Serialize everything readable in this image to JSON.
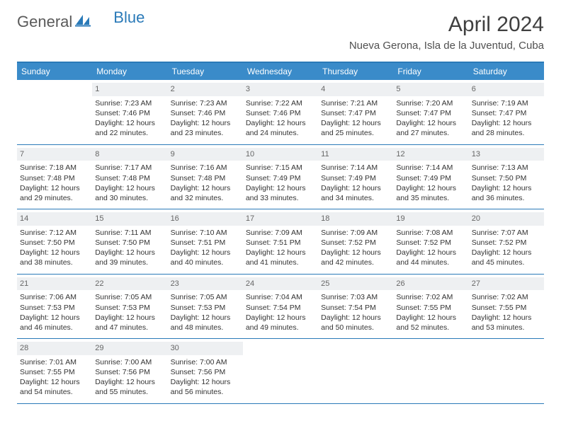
{
  "brand": {
    "part1": "General",
    "part2": "Blue"
  },
  "title": "April 2024",
  "location": "Nueva Gerona, Isla de la Juventud, Cuba",
  "colors": {
    "header_bg": "#3a8bc9",
    "header_text": "#ffffff",
    "border": "#2a7ab8",
    "daynum_bg": "#eef0f2",
    "text": "#333333",
    "brand_blue": "#2a7ab8",
    "brand_gray": "#5a5a5a"
  },
  "day_names": [
    "Sunday",
    "Monday",
    "Tuesday",
    "Wednesday",
    "Thursday",
    "Friday",
    "Saturday"
  ],
  "weeks": [
    [
      null,
      {
        "d": "1",
        "sr": "Sunrise: 7:23 AM",
        "ss": "Sunset: 7:46 PM",
        "dl": "Daylight: 12 hours and 22 minutes."
      },
      {
        "d": "2",
        "sr": "Sunrise: 7:23 AM",
        "ss": "Sunset: 7:46 PM",
        "dl": "Daylight: 12 hours and 23 minutes."
      },
      {
        "d": "3",
        "sr": "Sunrise: 7:22 AM",
        "ss": "Sunset: 7:46 PM",
        "dl": "Daylight: 12 hours and 24 minutes."
      },
      {
        "d": "4",
        "sr": "Sunrise: 7:21 AM",
        "ss": "Sunset: 7:47 PM",
        "dl": "Daylight: 12 hours and 25 minutes."
      },
      {
        "d": "5",
        "sr": "Sunrise: 7:20 AM",
        "ss": "Sunset: 7:47 PM",
        "dl": "Daylight: 12 hours and 27 minutes."
      },
      {
        "d": "6",
        "sr": "Sunrise: 7:19 AM",
        "ss": "Sunset: 7:47 PM",
        "dl": "Daylight: 12 hours and 28 minutes."
      }
    ],
    [
      {
        "d": "7",
        "sr": "Sunrise: 7:18 AM",
        "ss": "Sunset: 7:48 PM",
        "dl": "Daylight: 12 hours and 29 minutes."
      },
      {
        "d": "8",
        "sr": "Sunrise: 7:17 AM",
        "ss": "Sunset: 7:48 PM",
        "dl": "Daylight: 12 hours and 30 minutes."
      },
      {
        "d": "9",
        "sr": "Sunrise: 7:16 AM",
        "ss": "Sunset: 7:48 PM",
        "dl": "Daylight: 12 hours and 32 minutes."
      },
      {
        "d": "10",
        "sr": "Sunrise: 7:15 AM",
        "ss": "Sunset: 7:49 PM",
        "dl": "Daylight: 12 hours and 33 minutes."
      },
      {
        "d": "11",
        "sr": "Sunrise: 7:14 AM",
        "ss": "Sunset: 7:49 PM",
        "dl": "Daylight: 12 hours and 34 minutes."
      },
      {
        "d": "12",
        "sr": "Sunrise: 7:14 AM",
        "ss": "Sunset: 7:49 PM",
        "dl": "Daylight: 12 hours and 35 minutes."
      },
      {
        "d": "13",
        "sr": "Sunrise: 7:13 AM",
        "ss": "Sunset: 7:50 PM",
        "dl": "Daylight: 12 hours and 36 minutes."
      }
    ],
    [
      {
        "d": "14",
        "sr": "Sunrise: 7:12 AM",
        "ss": "Sunset: 7:50 PM",
        "dl": "Daylight: 12 hours and 38 minutes."
      },
      {
        "d": "15",
        "sr": "Sunrise: 7:11 AM",
        "ss": "Sunset: 7:50 PM",
        "dl": "Daylight: 12 hours and 39 minutes."
      },
      {
        "d": "16",
        "sr": "Sunrise: 7:10 AM",
        "ss": "Sunset: 7:51 PM",
        "dl": "Daylight: 12 hours and 40 minutes."
      },
      {
        "d": "17",
        "sr": "Sunrise: 7:09 AM",
        "ss": "Sunset: 7:51 PM",
        "dl": "Daylight: 12 hours and 41 minutes."
      },
      {
        "d": "18",
        "sr": "Sunrise: 7:09 AM",
        "ss": "Sunset: 7:52 PM",
        "dl": "Daylight: 12 hours and 42 minutes."
      },
      {
        "d": "19",
        "sr": "Sunrise: 7:08 AM",
        "ss": "Sunset: 7:52 PM",
        "dl": "Daylight: 12 hours and 44 minutes."
      },
      {
        "d": "20",
        "sr": "Sunrise: 7:07 AM",
        "ss": "Sunset: 7:52 PM",
        "dl": "Daylight: 12 hours and 45 minutes."
      }
    ],
    [
      {
        "d": "21",
        "sr": "Sunrise: 7:06 AM",
        "ss": "Sunset: 7:53 PM",
        "dl": "Daylight: 12 hours and 46 minutes."
      },
      {
        "d": "22",
        "sr": "Sunrise: 7:05 AM",
        "ss": "Sunset: 7:53 PM",
        "dl": "Daylight: 12 hours and 47 minutes."
      },
      {
        "d": "23",
        "sr": "Sunrise: 7:05 AM",
        "ss": "Sunset: 7:53 PM",
        "dl": "Daylight: 12 hours and 48 minutes."
      },
      {
        "d": "24",
        "sr": "Sunrise: 7:04 AM",
        "ss": "Sunset: 7:54 PM",
        "dl": "Daylight: 12 hours and 49 minutes."
      },
      {
        "d": "25",
        "sr": "Sunrise: 7:03 AM",
        "ss": "Sunset: 7:54 PM",
        "dl": "Daylight: 12 hours and 50 minutes."
      },
      {
        "d": "26",
        "sr": "Sunrise: 7:02 AM",
        "ss": "Sunset: 7:55 PM",
        "dl": "Daylight: 12 hours and 52 minutes."
      },
      {
        "d": "27",
        "sr": "Sunrise: 7:02 AM",
        "ss": "Sunset: 7:55 PM",
        "dl": "Daylight: 12 hours and 53 minutes."
      }
    ],
    [
      {
        "d": "28",
        "sr": "Sunrise: 7:01 AM",
        "ss": "Sunset: 7:55 PM",
        "dl": "Daylight: 12 hours and 54 minutes."
      },
      {
        "d": "29",
        "sr": "Sunrise: 7:00 AM",
        "ss": "Sunset: 7:56 PM",
        "dl": "Daylight: 12 hours and 55 minutes."
      },
      {
        "d": "30",
        "sr": "Sunrise: 7:00 AM",
        "ss": "Sunset: 7:56 PM",
        "dl": "Daylight: 12 hours and 56 minutes."
      },
      null,
      null,
      null,
      null
    ]
  ]
}
